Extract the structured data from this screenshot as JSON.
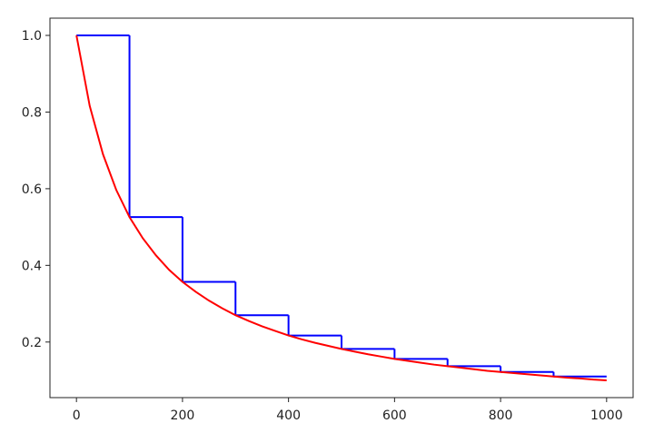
{
  "chart_data": {
    "type": "line",
    "xlim": [
      -50,
      1050
    ],
    "ylim": [
      0.055,
      1.045
    ],
    "xticks": [
      0,
      200,
      400,
      600,
      800,
      1000
    ],
    "yticks": [
      0.2,
      0.4,
      0.6,
      0.8,
      {
        "value": 1,
        "label": "1.0"
      }
    ],
    "series": [
      {
        "color": "#0000ff",
        "drawstyle": "steps-post",
        "x": [
          0,
          100,
          200,
          300,
          400,
          500,
          600,
          700,
          800,
          900,
          1000
        ],
        "values": [
          1,
          0.526,
          0.357,
          0.27,
          0.217,
          0.182,
          0.156,
          0.137,
          0.122,
          0.11,
          0.11
        ]
      },
      {
        "color": "#ff0000",
        "x": [
          0,
          25,
          50,
          75,
          100,
          125,
          150,
          175,
          200,
          225,
          250,
          275,
          300,
          325,
          350,
          375,
          400,
          425,
          450,
          475,
          500,
          525,
          550,
          575,
          600,
          625,
          650,
          675,
          700,
          725,
          750,
          775,
          800,
          825,
          850,
          875,
          900,
          925,
          950,
          975,
          1000
        ],
        "values": [
          1,
          0.816,
          0.69,
          0.597,
          0.526,
          0.471,
          0.426,
          0.388,
          0.357,
          0.331,
          0.308,
          0.288,
          0.27,
          0.255,
          0.241,
          0.229,
          0.217,
          0.207,
          0.198,
          0.19,
          0.182,
          0.175,
          0.168,
          0.162,
          0.156,
          0.151,
          0.146,
          0.141,
          0.137,
          0.133,
          0.129,
          0.125,
          0.122,
          0.119,
          0.116,
          0.113,
          0.11,
          0.107,
          0.105,
          0.102,
          0.1
        ]
      }
    ]
  }
}
